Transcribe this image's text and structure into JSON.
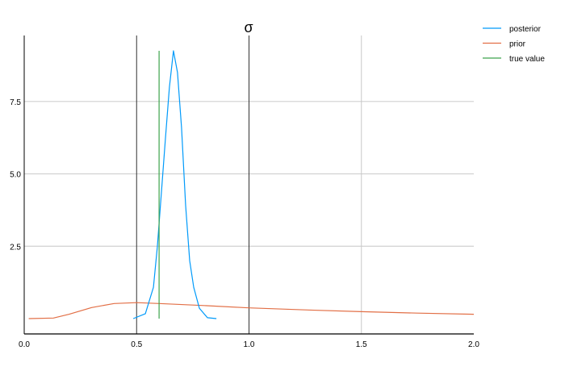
{
  "chart_data": {
    "type": "line",
    "title": "σ",
    "xlabel": "",
    "ylabel": "",
    "xlim": [
      0.0,
      2.0
    ],
    "ylim": [
      -0.53,
      9.78
    ],
    "xticks": [
      "0.0",
      "0.5",
      "1.0",
      "1.5",
      "2.0"
    ],
    "yticks": [
      "2.5",
      "5.0",
      "7.5"
    ],
    "grid": true,
    "legend_position": "top-right outside",
    "series": [
      {
        "name": "posterior",
        "color": "#009AFA",
        "points": [
          [
            0.485,
            0.0
          ],
          [
            0.539,
            0.17
          ],
          [
            0.575,
            1.08
          ],
          [
            0.592,
            2.47
          ],
          [
            0.61,
            4.33
          ],
          [
            0.628,
            6.2
          ],
          [
            0.646,
            8.0
          ],
          [
            0.664,
            9.25
          ],
          [
            0.682,
            8.5
          ],
          [
            0.7,
            6.6
          ],
          [
            0.718,
            3.9
          ],
          [
            0.736,
            2.0
          ],
          [
            0.754,
            1.08
          ],
          [
            0.779,
            0.36
          ],
          [
            0.815,
            0.03
          ],
          [
            0.855,
            0.0
          ]
        ]
      },
      {
        "name": "prior",
        "color": "#E26F46",
        "points": [
          [
            0.02,
            0.0
          ],
          [
            0.13,
            0.02
          ],
          [
            0.2,
            0.15
          ],
          [
            0.3,
            0.38
          ],
          [
            0.4,
            0.52
          ],
          [
            0.5,
            0.55
          ],
          [
            0.6,
            0.52
          ],
          [
            0.8,
            0.45
          ],
          [
            1.0,
            0.37
          ],
          [
            1.25,
            0.3
          ],
          [
            1.5,
            0.24
          ],
          [
            1.75,
            0.19
          ],
          [
            2.0,
            0.15
          ]
        ]
      },
      {
        "name": "true value",
        "color": "#3DA44D",
        "points": [
          [
            0.6,
            0.0
          ],
          [
            0.6,
            9.25
          ]
        ]
      }
    ]
  }
}
